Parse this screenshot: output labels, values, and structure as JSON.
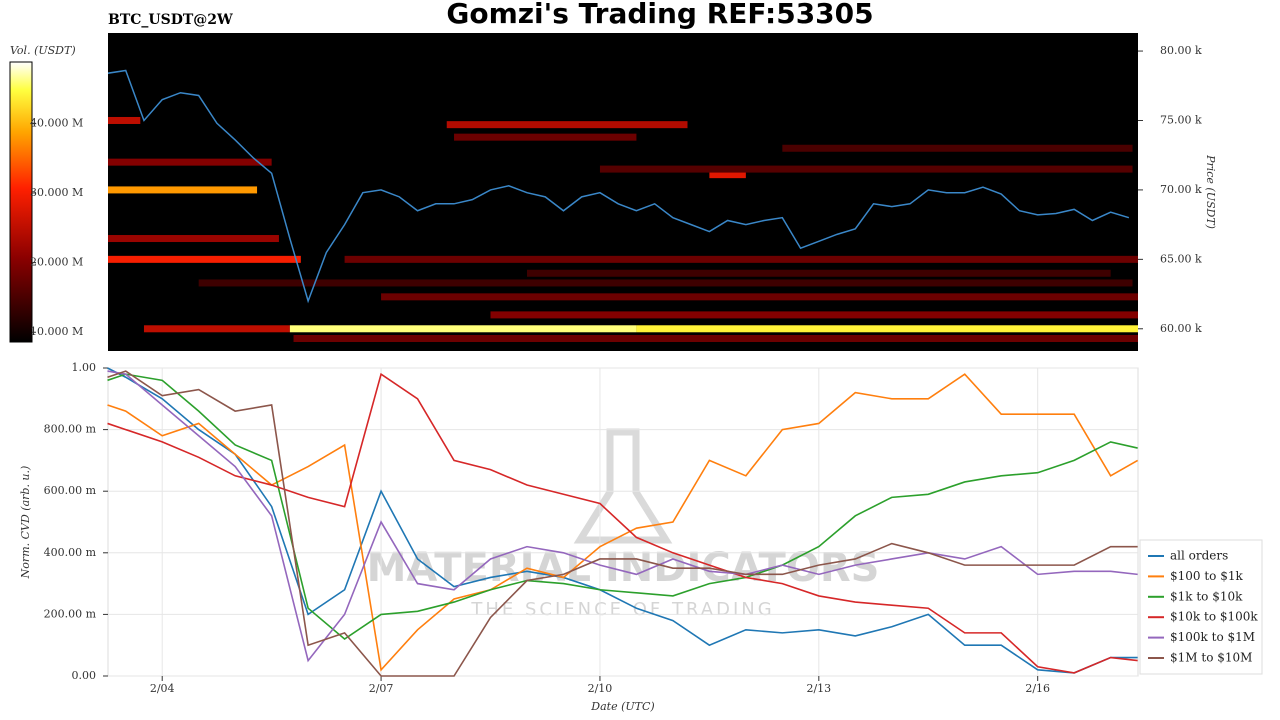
{
  "chart_data": [
    {
      "type": "heatmap",
      "title": "Gomzi's Trading REF:53305",
      "subtitle": "BTC_USDT@2W",
      "y_label": "Price (USDT)",
      "xlim": [
        3.257,
        17.375
      ],
      "ylim": [
        58400,
        81300
      ],
      "yticks": [
        {
          "value": 60000,
          "label": "60.00 k"
        },
        {
          "value": 65000,
          "label": "65.00 k"
        },
        {
          "value": 70000,
          "label": "70.00 k"
        },
        {
          "value": 75000,
          "label": "75.00 k"
        },
        {
          "value": 80000,
          "label": "80.00 k"
        }
      ],
      "colorbar": {
        "label": "Vol. (USDT)",
        "lim": [
          8600000,
          48800000
        ],
        "ticks": [
          {
            "value": 10000000,
            "label": "10.000 M"
          },
          {
            "value": 20000000,
            "label": "20.000 M"
          },
          {
            "value": 30000000,
            "label": "30.000 M"
          },
          {
            "value": 40000000,
            "label": "40.000 M"
          }
        ]
      },
      "bands": [
        {
          "price": 60000,
          "start": 3.75,
          "end": 5.75,
          "volume": 25000000
        },
        {
          "price": 60000,
          "start": 5.75,
          "end": 10.5,
          "volume": 46000000
        },
        {
          "price": 60000,
          "start": 10.5,
          "end": 17.375,
          "volume": 44000000
        },
        {
          "price": 59300,
          "start": 5.8,
          "end": 17.375,
          "volume": 18000000
        },
        {
          "price": 61000,
          "start": 8.5,
          "end": 17.375,
          "volume": 20000000
        },
        {
          "price": 62300,
          "start": 7.0,
          "end": 17.375,
          "volume": 18000000
        },
        {
          "price": 63300,
          "start": 4.5,
          "end": 17.3,
          "volume": 14000000
        },
        {
          "price": 64000,
          "start": 9.0,
          "end": 17.0,
          "volume": 14000000
        },
        {
          "price": 65000,
          "start": 3.257,
          "end": 5.9,
          "volume": 30000000
        },
        {
          "price": 65000,
          "start": 6.5,
          "end": 17.375,
          "volume": 18000000
        },
        {
          "price": 66500,
          "start": 3.257,
          "end": 5.6,
          "volume": 22000000
        },
        {
          "price": 70000,
          "start": 3.257,
          "end": 5.3,
          "volume": 38000000
        },
        {
          "price": 71100,
          "start": 11.5,
          "end": 12.0,
          "volume": 28000000
        },
        {
          "price": 71500,
          "start": 10.0,
          "end": 17.3,
          "volume": 16000000
        },
        {
          "price": 72000,
          "start": 3.257,
          "end": 5.5,
          "volume": 20000000
        },
        {
          "price": 73000,
          "start": 12.5,
          "end": 17.3,
          "volume": 15000000
        },
        {
          "price": 73800,
          "start": 8.0,
          "end": 10.5,
          "volume": 18000000
        },
        {
          "price": 74700,
          "start": 7.9,
          "end": 11.2,
          "volume": 24000000
        },
        {
          "price": 75000,
          "start": 3.257,
          "end": 3.7,
          "volume": 25000000
        }
      ],
      "line_color": "#3a87c8",
      "x": [
        3.25,
        3.5,
        3.75,
        4.0,
        4.25,
        4.5,
        4.75,
        5.0,
        5.25,
        5.5,
        5.75,
        6.0,
        6.25,
        6.5,
        6.75,
        7.0,
        7.25,
        7.5,
        7.75,
        8.0,
        8.25,
        8.5,
        8.75,
        9.0,
        9.25,
        9.5,
        9.75,
        10.0,
        10.25,
        10.5,
        10.75,
        11.0,
        11.25,
        11.5,
        11.75,
        12.0,
        12.25,
        12.5,
        12.75,
        13.0,
        13.25,
        13.5,
        13.75,
        14.0,
        14.25,
        14.5,
        14.75,
        15.0,
        15.25,
        15.5,
        15.75,
        16.0,
        16.25,
        16.5,
        16.75,
        17.0,
        17.25
      ],
      "values": [
        78400,
        78600,
        75000,
        76500,
        77000,
        76800,
        74800,
        73600,
        72300,
        71200,
        66500,
        62000,
        65500,
        67500,
        69800,
        70000,
        69500,
        68500,
        69000,
        69000,
        69300,
        70000,
        70300,
        69800,
        69500,
        68500,
        69500,
        69800,
        69000,
        68500,
        69000,
        68000,
        67500,
        67000,
        67800,
        67500,
        67800,
        68000,
        65800,
        66300,
        66800,
        67200,
        69000,
        68800,
        69000,
        70000,
        69800,
        69800,
        70200,
        69700,
        68500,
        68200,
        68300,
        68600,
        67800,
        68400,
        68000
      ]
    },
    {
      "type": "line",
      "x_label": "Date (UTC)",
      "y_label": "Norm. CVD (arb. u.)",
      "grid": true,
      "legend": "right",
      "watermark": {
        "title": "MATERIAL INDICATORS",
        "subtitle": "THE SCIENCE OF TRADING"
      },
      "xlim": [
        3.257,
        17.375
      ],
      "xticks": [
        {
          "value": 4,
          "label": "2/04"
        },
        {
          "value": 7,
          "label": "2/07"
        },
        {
          "value": 10,
          "label": "2/10"
        },
        {
          "value": 13,
          "label": "2/13"
        },
        {
          "value": 16,
          "label": "2/16"
        }
      ],
      "ylim": [
        0,
        1
      ],
      "yticks": [
        {
          "value": 0,
          "label": "0.00"
        },
        {
          "value": 0.2,
          "label": "200.00 m"
        },
        {
          "value": 0.4,
          "label": "400.00 m"
        },
        {
          "value": 0.6,
          "label": "600.00 m"
        },
        {
          "value": 0.8,
          "label": "800.00 m"
        },
        {
          "value": 1,
          "label": "1.00"
        }
      ],
      "x": [
        3.25,
        3.5,
        4,
        4.5,
        5,
        5.5,
        6,
        6.5,
        7,
        7.5,
        8,
        8.5,
        9,
        9.5,
        10,
        10.5,
        11,
        11.5,
        12,
        12.5,
        13,
        13.5,
        14,
        14.5,
        15,
        15.5,
        16,
        16.5,
        17,
        17.37
      ],
      "series": [
        {
          "name": "all orders",
          "color": "#1f77b4",
          "values": [
            1.0,
            0.97,
            0.9,
            0.8,
            0.72,
            0.55,
            0.2,
            0.28,
            0.6,
            0.38,
            0.29,
            0.32,
            0.34,
            0.32,
            0.28,
            0.22,
            0.18,
            0.1,
            0.15,
            0.14,
            0.15,
            0.13,
            0.16,
            0.2,
            0.1,
            0.1,
            0.02,
            0.01,
            0.06,
            0.06
          ]
        },
        {
          "name": "$100 to $1k",
          "color": "#ff7f0e",
          "values": [
            0.88,
            0.86,
            0.78,
            0.82,
            0.72,
            0.62,
            0.68,
            0.75,
            0.02,
            0.15,
            0.25,
            0.28,
            0.35,
            0.32,
            0.42,
            0.48,
            0.5,
            0.7,
            0.65,
            0.8,
            0.82,
            0.92,
            0.9,
            0.9,
            0.98,
            0.85,
            0.85,
            0.85,
            0.65,
            0.7
          ]
        },
        {
          "name": "$1k to $10k",
          "color": "#2ca02c",
          "values": [
            0.96,
            0.98,
            0.96,
            0.86,
            0.75,
            0.7,
            0.22,
            0.12,
            0.2,
            0.21,
            0.24,
            0.28,
            0.31,
            0.3,
            0.28,
            0.27,
            0.26,
            0.3,
            0.32,
            0.36,
            0.42,
            0.52,
            0.58,
            0.59,
            0.63,
            0.65,
            0.66,
            0.7,
            0.76,
            0.74
          ]
        },
        {
          "name": "$10k to $100k",
          "color": "#d62728",
          "values": [
            0.82,
            0.8,
            0.76,
            0.71,
            0.65,
            0.62,
            0.58,
            0.55,
            0.98,
            0.9,
            0.7,
            0.67,
            0.62,
            0.59,
            0.56,
            0.45,
            0.4,
            0.36,
            0.32,
            0.3,
            0.26,
            0.24,
            0.23,
            0.22,
            0.14,
            0.14,
            0.03,
            0.01,
            0.06,
            0.05
          ]
        },
        {
          "name": "$100k to $1M",
          "color": "#9467bd",
          "values": [
            0.99,
            0.98,
            0.88,
            0.78,
            0.68,
            0.52,
            0.05,
            0.2,
            0.5,
            0.3,
            0.28,
            0.38,
            0.42,
            0.4,
            0.36,
            0.33,
            0.38,
            0.34,
            0.33,
            0.36,
            0.33,
            0.36,
            0.38,
            0.4,
            0.38,
            0.42,
            0.33,
            0.34,
            0.34,
            0.33
          ]
        },
        {
          "name": "$1M to $10M",
          "color": "#8c564b",
          "values": [
            0.97,
            0.99,
            0.91,
            0.93,
            0.86,
            0.88,
            0.1,
            0.14,
            0.0,
            0.0,
            0.0,
            0.19,
            0.31,
            0.33,
            0.38,
            0.38,
            0.35,
            0.35,
            0.33,
            0.33,
            0.36,
            0.38,
            0.43,
            0.4,
            0.36,
            0.36,
            0.36,
            0.36,
            0.42,
            0.42
          ]
        }
      ]
    }
  ]
}
